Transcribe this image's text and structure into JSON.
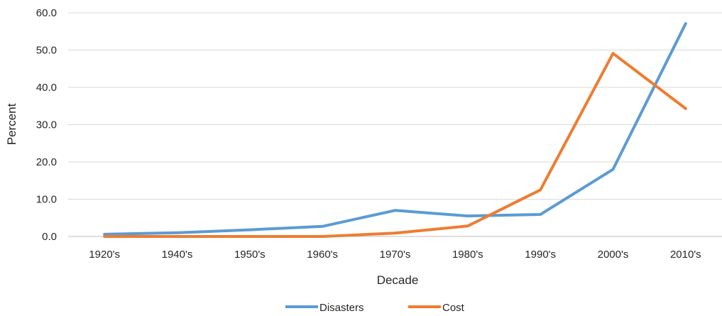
{
  "chart_data": {
    "type": "line",
    "title": "",
    "xlabel": "Decade",
    "ylabel": "Percent",
    "categories": [
      "1920's",
      "1940's",
      "1950's",
      "1960's",
      "1970's",
      "1980's",
      "1990's",
      "2000's",
      "2010's"
    ],
    "ylim": [
      0,
      60
    ],
    "yticks": [
      "0.0",
      "10.0",
      "20.0",
      "30.0",
      "40.0",
      "50.0",
      "60.0"
    ],
    "grid": true,
    "legend_position": "bottom",
    "series": [
      {
        "name": "Disasters",
        "color": "#5b9bd5",
        "values": [
          0.6,
          1.0,
          1.8,
          2.7,
          7.0,
          5.5,
          5.9,
          18.0,
          57.1
        ]
      },
      {
        "name": "Cost",
        "color": "#ed7d31",
        "values": [
          0.0,
          0.0,
          0.0,
          0.0,
          0.9,
          2.8,
          12.5,
          49.1,
          34.3
        ]
      }
    ]
  }
}
